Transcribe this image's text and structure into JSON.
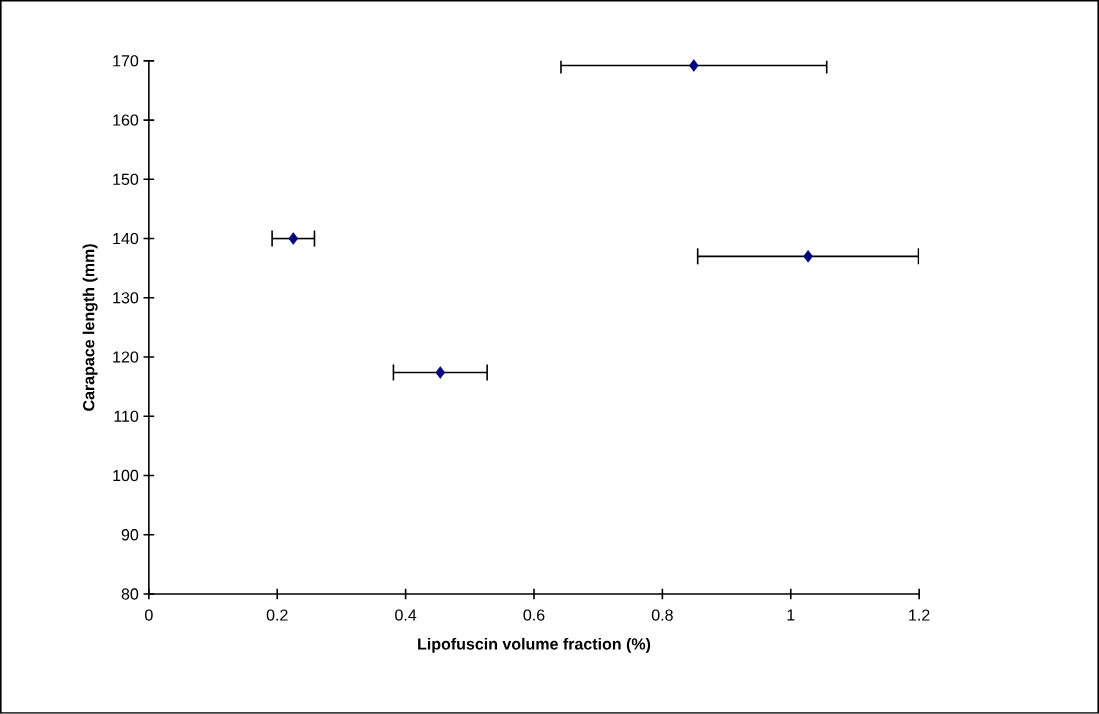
{
  "chart_data": {
    "type": "scatter",
    "xlabel": "Lipofuscin volume fraction (%)",
    "ylabel": "Carapace length (mm)",
    "x": [
      0.225,
      0.454,
      0.849,
      1.027
    ],
    "values": [
      140,
      117.4,
      169.2,
      137
    ],
    "xerrors": [
      0.033,
      0.073,
      0.207,
      0.172
    ],
    "color": "#000080",
    "marker": "diamond",
    "xlim": [
      0,
      1.2
    ],
    "ylim": [
      80,
      170
    ],
    "xticks": [
      0,
      0.2,
      0.4,
      0.6,
      0.8,
      1,
      1.2
    ],
    "yticks": [
      80,
      90,
      100,
      110,
      120,
      130,
      140,
      150,
      160,
      170
    ],
    "grid": false
  }
}
